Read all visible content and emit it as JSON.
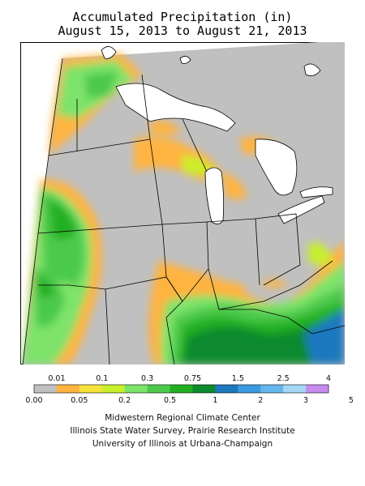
{
  "title_line1": "Accumulated Precipitation (in)",
  "title_line2": "August 15, 2013 to August 21, 2013",
  "legend": {
    "upper_labels": [
      "0.01",
      "0.1",
      "0.3",
      "0.75",
      "1.5",
      "2.5",
      "4"
    ],
    "lower_labels": [
      "0.00",
      "0.05",
      "0.2",
      "0.5",
      "1",
      "2",
      "3",
      "5"
    ],
    "colors": [
      "#c0c0c0",
      "#ffb340",
      "#f5e23a",
      "#c8f02a",
      "#7ee36a",
      "#4cc94c",
      "#22b022",
      "#0e8a2e",
      "#1e78be",
      "#3c9ae0",
      "#64b6ee",
      "#a6d6f6",
      "#c78cf0"
    ]
  },
  "credits": {
    "line1": "Midwestern Regional Climate Center",
    "line2": "Illinois State Water Survey, Prairie Research Institute",
    "line3": "University of Illinois at Urbana-Champaign"
  },
  "colors": {
    "none": "#c0c0c0",
    "trace": "#ffb340",
    "yellow": "#f5e23a",
    "light_green": "#7ee36a",
    "mid_green": "#4cc94c",
    "green": "#22b022",
    "dark_green": "#0e8a2e",
    "blue": "#1e78be",
    "lake": "#ffffff",
    "boundary": "#000000"
  }
}
